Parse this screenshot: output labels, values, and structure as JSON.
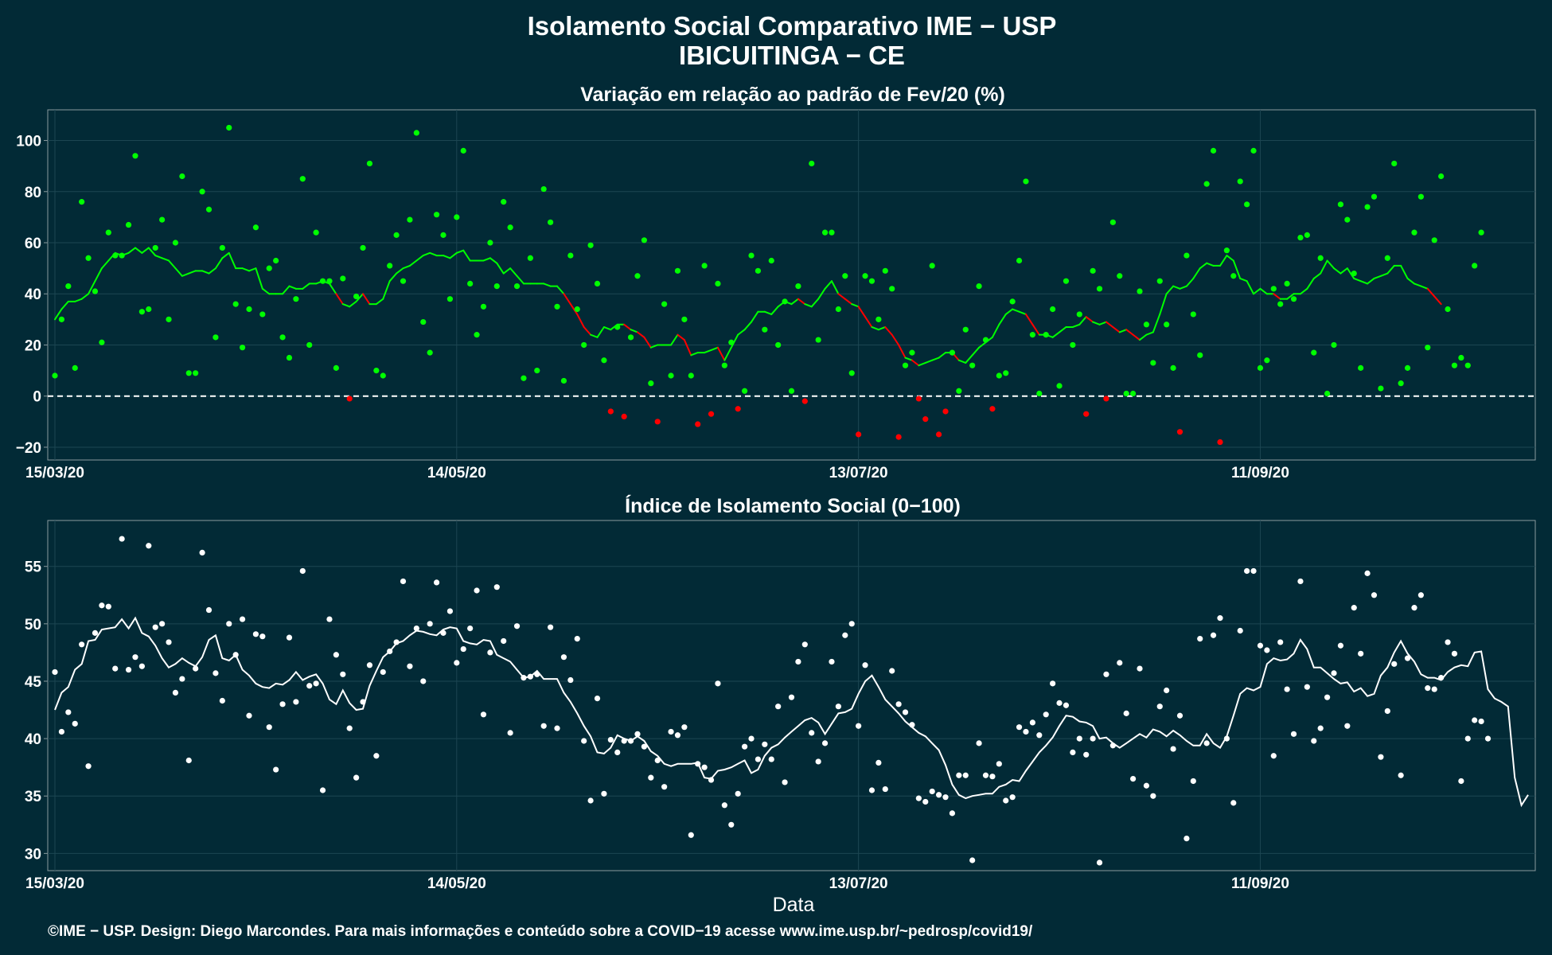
{
  "title": {
    "line1": "Isolamento Social Comparativo IME − USP",
    "line2": "IBICUITINGA − CE"
  },
  "footer": "©IME − USP. Design: Diego Marcondes. Para mais informações e conteúdo sobre a COVID−19 acesse www.ime.usp.br/~pedrosp/covid19/",
  "xlabel": "Data",
  "colors": {
    "background": "#022a36",
    "positive": "#00ff00",
    "negative": "#ff0000",
    "index": "#ffffff",
    "zero_line": "#ffffff"
  },
  "chart_data": [
    {
      "type": "scatter",
      "title": "Variação em relação ao padrão de Fev/20 (%)",
      "x_start": "2020-03-15",
      "x_end": "2020-10-21",
      "xticks": [
        "15/03/20",
        "14/05/20",
        "13/07/20",
        "11/09/20"
      ],
      "xtick_dates": [
        "2020-03-15",
        "2020-05-14",
        "2020-07-13",
        "2020-09-11"
      ],
      "ylim": [
        -25,
        112
      ],
      "yticks": [
        -20,
        0,
        20,
        40,
        60,
        80,
        100
      ],
      "ytick_labels": [
        "−20",
        "0",
        "20",
        "40",
        "60",
        "80",
        "100"
      ],
      "reference_line": 0,
      "grid": true,
      "series": [
        {
          "kind": "points",
          "color_rule": "green if value >= 0, red if value < 0",
          "values": [
            8,
            30,
            43,
            11,
            76,
            54,
            41,
            21,
            64,
            55,
            55,
            67,
            94,
            33,
            34,
            58,
            69,
            30,
            60,
            86,
            9,
            9,
            80,
            73,
            23,
            58,
            105,
            36,
            19,
            34,
            66,
            32,
            50,
            53,
            23,
            15,
            38,
            85,
            20,
            64,
            45,
            45,
            11,
            46,
            -1,
            39,
            58,
            91,
            10,
            8,
            51,
            63,
            45,
            69,
            103,
            29,
            17,
            71,
            63,
            38,
            70,
            96,
            44,
            24,
            35,
            60,
            43,
            76,
            66,
            43,
            7,
            54,
            10,
            81,
            68,
            35,
            6,
            55,
            34,
            20,
            59,
            44,
            14,
            -6,
            27,
            -8,
            23,
            47,
            61,
            5,
            -10,
            36,
            8,
            49,
            30,
            8,
            -11,
            51,
            -7,
            44,
            12,
            21,
            -5,
            2,
            55,
            49,
            26,
            53,
            20,
            37,
            2,
            43,
            -2,
            91,
            22,
            64,
            64,
            34,
            47,
            9,
            -15,
            47,
            45,
            30,
            49,
            42,
            -16,
            12,
            17,
            -1,
            -9,
            51,
            -15,
            -6,
            17,
            2,
            26,
            12,
            43,
            22,
            -5,
            8,
            9,
            37,
            53,
            84,
            24,
            1,
            24,
            34,
            4,
            45,
            20,
            32,
            -7,
            49,
            42,
            -1,
            68,
            47,
            1,
            1,
            41,
            28,
            13,
            45,
            28,
            11,
            -14,
            55,
            32,
            16,
            83,
            96,
            -18,
            57,
            47,
            84,
            75,
            96,
            11,
            14,
            42,
            36,
            44,
            38,
            62,
            63,
            17,
            54,
            1,
            20,
            75,
            69,
            48,
            11,
            74,
            78,
            3,
            54,
            91,
            5,
            11,
            64,
            78,
            19,
            61,
            86,
            34,
            12,
            15,
            12,
            51,
            64
          ],
          "moving_average": [
            30,
            34,
            37,
            37,
            38,
            40,
            45,
            50,
            53,
            56,
            55,
            56,
            58,
            56,
            58,
            55,
            54,
            53,
            50,
            47,
            48,
            49,
            49,
            48,
            50,
            54,
            56,
            50,
            50,
            49,
            50,
            42,
            40,
            40,
            40,
            43,
            42,
            42,
            44,
            44,
            45,
            44,
            40,
            36,
            35,
            37,
            40,
            36,
            36,
            38,
            45,
            48,
            50,
            51,
            53,
            55,
            56,
            55,
            55,
            54,
            56,
            57,
            53,
            53,
            53,
            54,
            52,
            48,
            50,
            47,
            44,
            44,
            44,
            44,
            43,
            43,
            40,
            36,
            32,
            27,
            24,
            23,
            27,
            26,
            28,
            28,
            26,
            25,
            23,
            19,
            20,
            20,
            20,
            24,
            22,
            16,
            17,
            17,
            18,
            19,
            14,
            19,
            24,
            26,
            29,
            33,
            33,
            32,
            35,
            37,
            36,
            38,
            36,
            35,
            38,
            42,
            45,
            40,
            38,
            36,
            35,
            31,
            27,
            26,
            27,
            24,
            20,
            15,
            14,
            12,
            13,
            14,
            15,
            17,
            17,
            14,
            13,
            16,
            19,
            21,
            23,
            28,
            32,
            34,
            33,
            32,
            28,
            24,
            24,
            23,
            25,
            27,
            27,
            28,
            31,
            29,
            28,
            29,
            27,
            25,
            26,
            24,
            22,
            24,
            25,
            32,
            40,
            43,
            42,
            43,
            46,
            50,
            52,
            51,
            51,
            55,
            53,
            46,
            45,
            40,
            42,
            40,
            40,
            38,
            38,
            40,
            40,
            42,
            46,
            48,
            53,
            50,
            48,
            50,
            46,
            45,
            44,
            46,
            47,
            48,
            51,
            51,
            46,
            44,
            43,
            42,
            39,
            36
          ]
        }
      ]
    },
    {
      "type": "scatter",
      "title": "Índice de Isolamento Social (0−100)",
      "x_start": "2020-03-15",
      "x_end": "2020-10-21",
      "xticks": [
        "15/03/20",
        "14/05/20",
        "13/07/20",
        "11/09/20"
      ],
      "xtick_dates": [
        "2020-03-15",
        "2020-05-14",
        "2020-07-13",
        "2020-09-11"
      ],
      "ylim": [
        28.5,
        59
      ],
      "yticks": [
        30,
        35,
        40,
        45,
        50,
        55
      ],
      "grid": true,
      "series": [
        {
          "kind": "points",
          "values": [
            45.8,
            40.6,
            42.3,
            41.3,
            48.2,
            37.6,
            49.2,
            51.6,
            51.5,
            46.1,
            57.4,
            46.0,
            47.1,
            46.3,
            56.8,
            49.7,
            50.0,
            48.4,
            44.0,
            45.2,
            38.1,
            46.1,
            56.2,
            51.2,
            45.7,
            43.3,
            50.0,
            47.3,
            50.4,
            42.0,
            49.1,
            48.9,
            41.0,
            37.3,
            43.0,
            48.8,
            43.2,
            54.6,
            44.6,
            44.8,
            35.5,
            50.4,
            47.3,
            45.6,
            40.9,
            36.6,
            43.2,
            46.4,
            38.5,
            45.8,
            47.6,
            48.4,
            53.7,
            46.3,
            49.6,
            45.0,
            50.0,
            53.6,
            49.2,
            51.1,
            46.6,
            47.8,
            49.6,
            52.9,
            42.1,
            47.5,
            53.2,
            48.5,
            40.5,
            49.8,
            45.3,
            45.4,
            45.6,
            41.1,
            49.7,
            40.9,
            47.1,
            45.1,
            48.7,
            39.8,
            34.6,
            43.5,
            35.2,
            39.9,
            38.8,
            39.8,
            39.8,
            40.4,
            39.3,
            36.6,
            38.1,
            35.8,
            40.6,
            40.3,
            41.0,
            31.6,
            37.8,
            37.5,
            36.4,
            44.8,
            34.2,
            32.5,
            35.2,
            39.3,
            40.0,
            38.2,
            39.5,
            38.2,
            42.8,
            36.2,
            43.6,
            46.7,
            48.2,
            40.5,
            38.0,
            39.6,
            46.7,
            42.8,
            49.0,
            50.0,
            41.1,
            46.4,
            35.5,
            37.9,
            35.6,
            45.9,
            43.0,
            42.3,
            41.2,
            34.8,
            34.5,
            35.4,
            35.1,
            34.9,
            33.5,
            36.8,
            36.8,
            29.4,
            39.6,
            36.8,
            36.7,
            37.8,
            34.6,
            34.9,
            41.0,
            40.6,
            41.4,
            40.3,
            42.1,
            44.8,
            43.1,
            42.9,
            38.8,
            40.0,
            38.6,
            40.0,
            29.2,
            45.6,
            39.4,
            46.6,
            42.2,
            36.5,
            46.1,
            35.9,
            35.0,
            42.8,
            44.2,
            39.1,
            42.0,
            31.3,
            36.3,
            48.7,
            39.6,
            49.0,
            50.5,
            40.0,
            34.4,
            49.4,
            54.6,
            54.6,
            48.1,
            47.7,
            38.5,
            48.4,
            44.3,
            40.4,
            53.7,
            44.5,
            39.8,
            40.9,
            43.6,
            45.7,
            48.1,
            41.1,
            51.4,
            47.4,
            54.4,
            52.5,
            38.4,
            42.4,
            46.5,
            36.8,
            47.0,
            51.4,
            52.5,
            44.4,
            44.3,
            45.3,
            48.4,
            47.4,
            36.3,
            40.0,
            41.6,
            41.5,
            40.0
          ],
          "moving_average": [
            42.5,
            44.0,
            44.5,
            46.0,
            46.5,
            48.5,
            48.6,
            49.5,
            49.6,
            49.7,
            50.4,
            49.6,
            50.5,
            49.2,
            48.9,
            48.1,
            47.0,
            46.2,
            46.5,
            47.0,
            46.6,
            46.3,
            47.1,
            48.6,
            49.0,
            47.0,
            46.8,
            47.3,
            46.0,
            45.5,
            44.8,
            44.5,
            44.4,
            44.8,
            44.7,
            45.1,
            45.8,
            45.1,
            45.4,
            45.6,
            44.8,
            43.4,
            43.0,
            44.2,
            43.1,
            42.5,
            42.6,
            44.6,
            45.9,
            47.1,
            47.6,
            48.3,
            48.5,
            49.0,
            49.4,
            49.3,
            49.1,
            49.0,
            49.5,
            49.7,
            49.6,
            48.5,
            48.3,
            48.2,
            48.6,
            48.5,
            47.3,
            47.0,
            46.7,
            46.0,
            45.3,
            45.4,
            45.9,
            45.2,
            45.2,
            45.2,
            44.0,
            43.2,
            42.2,
            41.1,
            40.2,
            38.8,
            38.7,
            39.2,
            40.3,
            40.0,
            39.8,
            40.2,
            39.8,
            38.9,
            38.5,
            37.8,
            37.6,
            37.8,
            37.8,
            37.8,
            37.9,
            36.6,
            36.5,
            37.2,
            37.3,
            37.5,
            37.8,
            38.1,
            37.0,
            37.3,
            38.5,
            39.2,
            39.5,
            40.1,
            40.6,
            41.1,
            41.6,
            41.8,
            41.4,
            40.4,
            41.3,
            42.2,
            42.3,
            42.6,
            43.9,
            45.0,
            45.5,
            44.5,
            43.4,
            42.8,
            42.2,
            41.5,
            41.0,
            40.5,
            40.2,
            39.6,
            39.0,
            37.7,
            36.0,
            35.1,
            34.8,
            35.0,
            35.1,
            35.2,
            35.2,
            35.8,
            36.0,
            36.4,
            36.3,
            37.2,
            38.0,
            38.8,
            39.4,
            40.1,
            41.1,
            42.0,
            41.9,
            41.5,
            41.4,
            41.1,
            40.0,
            40.1,
            39.6,
            39.2,
            39.6,
            40.0,
            40.4,
            40.1,
            40.8,
            40.6,
            40.2,
            40.7,
            40.3,
            39.8,
            39.4,
            39.4,
            40.4,
            39.6,
            39.2,
            40.2,
            42.0,
            43.9,
            44.4,
            44.2,
            44.5,
            46.5,
            47.0,
            46.8,
            46.9,
            47.4,
            48.6,
            47.8,
            46.2,
            46.2,
            45.7,
            45.2,
            44.8,
            44.9,
            44.1,
            44.4,
            43.7,
            43.9,
            45.5,
            46.2,
            47.5,
            48.5,
            47.4,
            46.7,
            45.6,
            45.3,
            45.3,
            45.1,
            45.8,
            46.2,
            46.4,
            46.3,
            47.5,
            47.6,
            44.3,
            43.5,
            43.2,
            42.8,
            36.6,
            34.2,
            35.1
          ]
        }
      ]
    }
  ]
}
